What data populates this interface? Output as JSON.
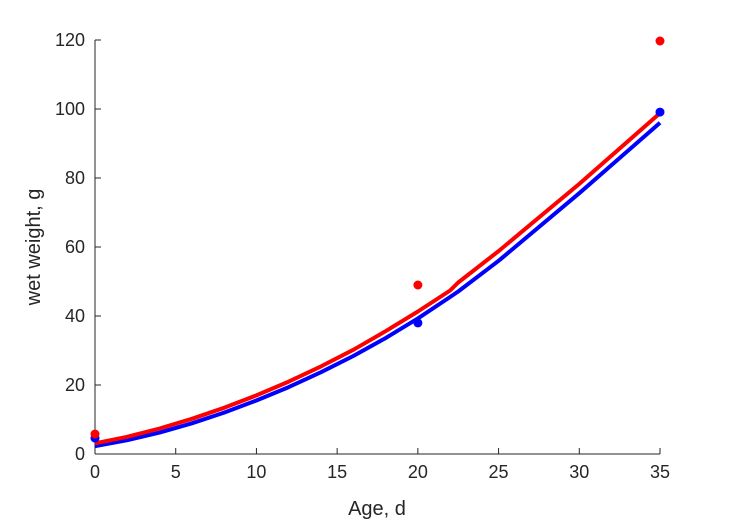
{
  "chart_data": {
    "type": "line",
    "xlabel": "Age, d",
    "ylabel": "wet weight, g",
    "xlim": [
      0,
      35
    ],
    "ylim": [
      0,
      120
    ],
    "xticks": [
      0,
      5,
      10,
      15,
      20,
      25,
      30,
      35
    ],
    "yticks": [
      0,
      20,
      40,
      60,
      80,
      100,
      120
    ],
    "grid": false,
    "colors": {
      "red": "#ff0000",
      "blue": "#0000ff",
      "axis": "#262626"
    },
    "series": [
      {
        "color": "red",
        "kind": "line",
        "x": [
          0,
          2,
          4,
          6,
          8,
          10,
          12,
          14,
          16,
          18,
          20,
          22,
          22.5,
          25,
          30,
          35
        ],
        "y": [
          3.1,
          5.0,
          7.4,
          10.2,
          13.4,
          17.0,
          21.0,
          25.4,
          30.2,
          35.6,
          41.3,
          47.4,
          49.7,
          58.8,
          78.3,
          98.8
        ]
      },
      {
        "color": "blue",
        "kind": "line",
        "x": [
          0,
          2,
          4,
          6,
          8,
          10,
          12,
          14,
          16,
          18,
          20,
          22,
          22.5,
          25,
          30,
          35
        ],
        "y": [
          2.3,
          4.0,
          6.2,
          8.9,
          12.0,
          15.5,
          19.4,
          23.7,
          28.4,
          33.6,
          39.3,
          45.5,
          47.1,
          56.0,
          75.6,
          96.0
        ]
      },
      {
        "color": "red",
        "kind": "points",
        "x": [
          0,
          20,
          35
        ],
        "y": [
          5.8,
          49.0,
          119.7
        ]
      },
      {
        "color": "blue",
        "kind": "points",
        "x": [
          0,
          20,
          35
        ],
        "y": [
          4.6,
          38.0,
          99.1
        ]
      }
    ]
  }
}
